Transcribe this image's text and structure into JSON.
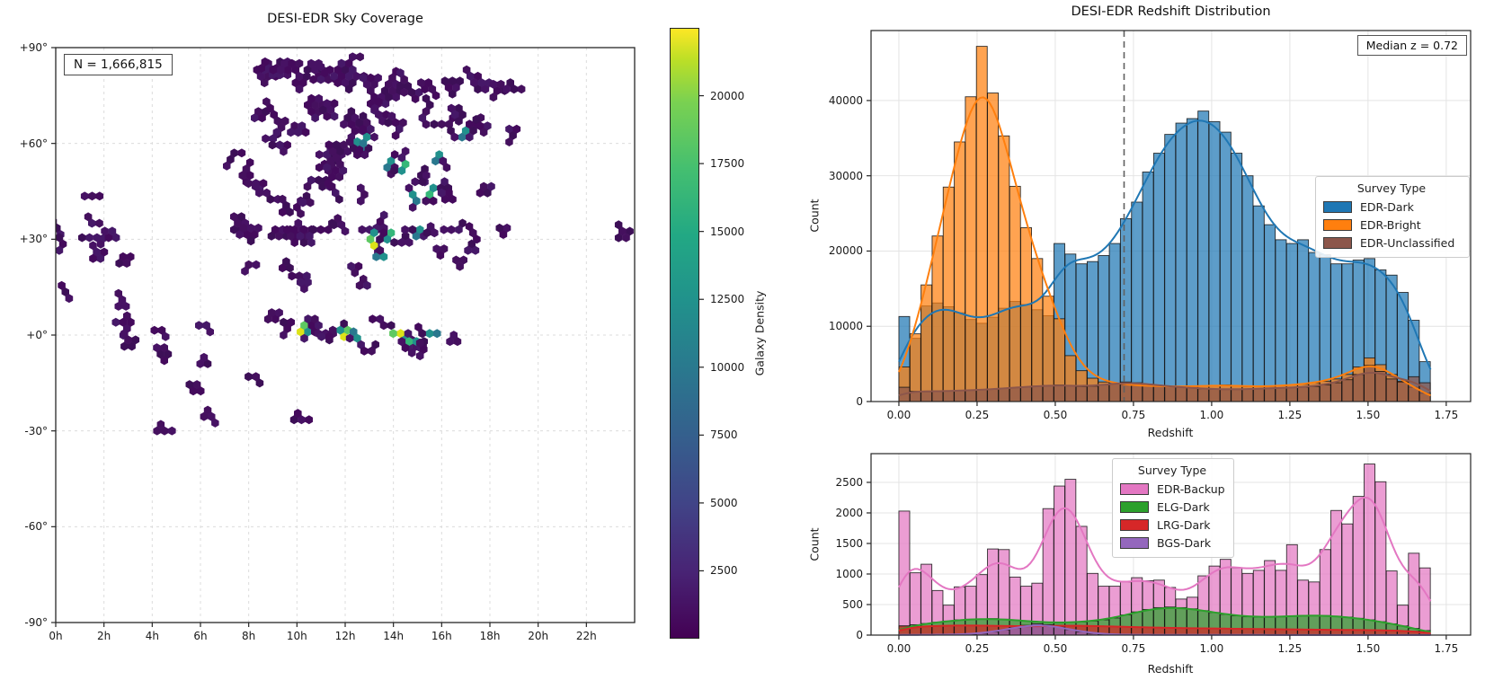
{
  "chart_data": [
    {
      "id": "sky-coverage",
      "type": "hexbin",
      "title": "DESI-EDR Sky Coverage",
      "annotation": "N = 1,666,815",
      "xlim": [
        0,
        24
      ],
      "ylim": [
        -90,
        90
      ],
      "x_tick_values": [
        0,
        2,
        4,
        6,
        8,
        10,
        12,
        14,
        16,
        18,
        20,
        22
      ],
      "x_tick_labels": [
        "0h",
        "2h",
        "4h",
        "6h",
        "8h",
        "10h",
        "12h",
        "14h",
        "16h",
        "18h",
        "20h",
        "22h"
      ],
      "y_tick_values": [
        90,
        60,
        30,
        0,
        -30,
        -60,
        -90
      ],
      "y_tick_labels": [
        "+90°",
        "+60°",
        "+30°",
        "+0°",
        "-30°",
        "-60°",
        "-90°"
      ],
      "grid": "dashed",
      "colorbar": {
        "label": "Galaxy Density",
        "tick_values": [
          2500,
          5000,
          7500,
          10000,
          12500,
          15000,
          17500,
          20000
        ],
        "tick_labels": [
          "2500",
          "5000",
          "7500",
          "10000",
          "12500",
          "15000",
          "17500",
          "20000"
        ],
        "vmin": 0,
        "vmax": 22500,
        "colormap": "viridis"
      },
      "clusters_format": [
        "ra_hours",
        "dec_deg",
        "hex_count",
        "hotspot_level"
      ],
      "clusters": [
        [
          8.5,
          81,
          8,
          0
        ],
        [
          9.3,
          81.5,
          10,
          0
        ],
        [
          10.1,
          81,
          12,
          0
        ],
        [
          10.9,
          81,
          8,
          0
        ],
        [
          11.3,
          80,
          6,
          0
        ],
        [
          12.0,
          79,
          16,
          0
        ],
        [
          12.9,
          78.5,
          12,
          0
        ],
        [
          13.8,
          78.5,
          10,
          0
        ],
        [
          14.6,
          78,
          8,
          0
        ],
        [
          15.3,
          77,
          5,
          0
        ],
        [
          16.6,
          77.5,
          6,
          0
        ],
        [
          17.5,
          77,
          8,
          0
        ],
        [
          18.3,
          76.5,
          5,
          0
        ],
        [
          19.0,
          77,
          4,
          0
        ],
        [
          8.4,
          70,
          4,
          0
        ],
        [
          9.2,
          67,
          7,
          0
        ],
        [
          9.9,
          65.5,
          5,
          0
        ],
        [
          10.6,
          70,
          9,
          0
        ],
        [
          11.4,
          70.5,
          6,
          0
        ],
        [
          12.1,
          68,
          9,
          0
        ],
        [
          12.9,
          66.5,
          6,
          0
        ],
        [
          13.7,
          69,
          5,
          0
        ],
        [
          14.4,
          66.5,
          6,
          0
        ],
        [
          15.2,
          68,
          5,
          0
        ],
        [
          16.0,
          66,
          4,
          0
        ],
        [
          16.4,
          71,
          5,
          0
        ],
        [
          17.0,
          64,
          9,
          0.35
        ],
        [
          17.9,
          65.5,
          4,
          0
        ],
        [
          18.8,
          64.5,
          4,
          0
        ],
        [
          8.7,
          61.5,
          3,
          0
        ],
        [
          9.6,
          59.5,
          4,
          0
        ],
        [
          7.4,
          57,
          4,
          0
        ],
        [
          7.9,
          52,
          5,
          0
        ],
        [
          8.3,
          47.5,
          4,
          0
        ],
        [
          8.9,
          42.5,
          5,
          0
        ],
        [
          9.4,
          38.5,
          4,
          0
        ],
        [
          10.0,
          40,
          3,
          0
        ],
        [
          10.4,
          43.5,
          3,
          0
        ],
        [
          10.9,
          48.5,
          6,
          0
        ],
        [
          11.3,
          51.5,
          8,
          0
        ],
        [
          11.7,
          54.5,
          10,
          0
        ],
        [
          12.1,
          57.5,
          8,
          0
        ],
        [
          12.5,
          60.5,
          7,
          0.4
        ],
        [
          12.9,
          62,
          4,
          0.45
        ],
        [
          13.9,
          54.5,
          5,
          0.3
        ],
        [
          14.5,
          53.5,
          5,
          0.55
        ],
        [
          15.3,
          52,
          3,
          0
        ],
        [
          15.9,
          56.5,
          4,
          0.4
        ],
        [
          14.9,
          48,
          3,
          0
        ],
        [
          12.8,
          44,
          3,
          0
        ],
        [
          11.6,
          44.5,
          3,
          0
        ],
        [
          14.8,
          44,
          4,
          0.3
        ],
        [
          15.5,
          44,
          7,
          0.6
        ],
        [
          16.3,
          44.5,
          4,
          0
        ],
        [
          17.9,
          44.5,
          4,
          0
        ],
        [
          1.2,
          43.5,
          3,
          0
        ],
        [
          7.7,
          33,
          6,
          0
        ],
        [
          8.4,
          33.5,
          7,
          0
        ],
        [
          9.1,
          33,
          8,
          0
        ],
        [
          9.9,
          33,
          7,
          0
        ],
        [
          10.6,
          33,
          6,
          0
        ],
        [
          11.3,
          33,
          5,
          0
        ],
        [
          12.0,
          32.5,
          4,
          0
        ],
        [
          12.7,
          33,
          3,
          0
        ],
        [
          13.3,
          33.5,
          4,
          0
        ],
        [
          13.9,
          32,
          5,
          0.6
        ],
        [
          14.5,
          31,
          4,
          0
        ],
        [
          15.1,
          33,
          5,
          0.35
        ],
        [
          15.7,
          32,
          3,
          0
        ],
        [
          16.4,
          33,
          4,
          0
        ],
        [
          17.3,
          32,
          3,
          0
        ],
        [
          18.4,
          33.5,
          3,
          0
        ],
        [
          23.8,
          32.5,
          5,
          0
        ],
        [
          0.2,
          31.5,
          3,
          0
        ],
        [
          0.3,
          28.5,
          4,
          0
        ],
        [
          1.4,
          30.5,
          5,
          0
        ],
        [
          1.7,
          26,
          5,
          0
        ],
        [
          2.5,
          30.5,
          4,
          0
        ],
        [
          1.5,
          35,
          3,
          0
        ],
        [
          3.1,
          24.5,
          4,
          0
        ],
        [
          13.2,
          28,
          4,
          0.75
        ],
        [
          13.6,
          24.5,
          3,
          0.3
        ],
        [
          16.1,
          27,
          3,
          0
        ],
        [
          16.6,
          23.5,
          3,
          0
        ],
        [
          17.4,
          26.5,
          3,
          0
        ],
        [
          9.4,
          21,
          3,
          0
        ],
        [
          10.1,
          18.5,
          4,
          0
        ],
        [
          10.3,
          14.5,
          3,
          0
        ],
        [
          12.4,
          19.5,
          3,
          0
        ],
        [
          12.6,
          15.5,
          3,
          0
        ],
        [
          0.4,
          13.5,
          3,
          0
        ],
        [
          8.0,
          22,
          3,
          0
        ],
        [
          2.6,
          9,
          4,
          0
        ],
        [
          2.8,
          4,
          6,
          0
        ],
        [
          3.0,
          -1.5,
          5,
          0
        ],
        [
          4.4,
          1.5,
          3,
          0
        ],
        [
          6.4,
          1,
          3,
          0
        ],
        [
          8.8,
          5,
          4,
          0
        ],
        [
          9.6,
          2,
          4,
          0
        ],
        [
          10.15,
          1,
          6,
          0.85
        ],
        [
          10.9,
          3,
          3,
          0
        ],
        [
          11.5,
          0.5,
          4,
          0
        ],
        [
          11.95,
          -0.5,
          7,
          0.85
        ],
        [
          12.5,
          -1,
          4,
          0.35
        ],
        [
          13.6,
          3,
          4,
          0
        ],
        [
          14.3,
          0.5,
          9,
          0.85
        ],
        [
          14.65,
          -2,
          6,
          0.6
        ],
        [
          15.5,
          0.5,
          4,
          0.3
        ],
        [
          13.1,
          -5,
          3,
          0
        ],
        [
          15.1,
          -6.5,
          3,
          0
        ],
        [
          16.5,
          0,
          3,
          0
        ],
        [
          4.5,
          -8,
          5,
          0
        ],
        [
          6.3,
          -9,
          3,
          0
        ],
        [
          5.7,
          -17.5,
          4,
          0
        ],
        [
          6.3,
          -23.5,
          4,
          0
        ],
        [
          4.2,
          -30,
          4,
          0
        ],
        [
          10.5,
          -26.5,
          4,
          0
        ],
        [
          8.3,
          -13,
          3,
          0
        ]
      ]
    },
    {
      "id": "redshift-distribution-main",
      "type": "histogram+kde",
      "title": "DESI-EDR Redshift Distribution",
      "xlabel": "Redshift",
      "ylabel": "Count",
      "annotation": "Median z = 0.72",
      "median_z": 0.72,
      "xlim": [
        -0.089,
        1.828
      ],
      "ylim": [
        0,
        49300
      ],
      "x_tick_values": [
        0,
        0.25,
        0.5,
        0.75,
        1.0,
        1.25,
        1.5,
        1.75
      ],
      "x_tick_labels": [
        "0.00",
        "0.25",
        "0.50",
        "0.75",
        "1.00",
        "1.25",
        "1.50",
        "1.75"
      ],
      "y_tick_values": [
        0,
        10000,
        20000,
        30000,
        40000
      ],
      "y_tick_labels": [
        "0",
        "10000",
        "20000",
        "30000",
        "40000"
      ],
      "bin_start": 0,
      "bin_width": 0.0354167,
      "kde_sigma": 0.05,
      "legend": {
        "title": "Survey Type"
      },
      "series": [
        {
          "name": "EDR-Dark",
          "color": "#1f77b4",
          "values": [
            11300,
            8400,
            12700,
            13100,
            12600,
            11800,
            10900,
            10400,
            11200,
            12400,
            13300,
            12900,
            12200,
            11400,
            21000,
            19600,
            18300,
            18600,
            19400,
            21000,
            24300,
            26500,
            30500,
            33000,
            35500,
            37000,
            37600,
            38600,
            37200,
            35800,
            33000,
            30000,
            26000,
            23500,
            21500,
            21000,
            21500,
            19800,
            19500,
            18300,
            18300,
            18800,
            19000,
            17500,
            16800,
            14500,
            10800,
            5300
          ]
        },
        {
          "name": "EDR-Bright",
          "color": "#ff7f0e",
          "values": [
            4600,
            9000,
            15500,
            22000,
            28500,
            34500,
            40500,
            47200,
            41000,
            35300,
            28600,
            23100,
            19000,
            14000,
            11000,
            6100,
            4100,
            3100,
            2600,
            2400,
            2200,
            2100,
            2100,
            2000,
            2000,
            2000,
            2000,
            2100,
            2100,
            2200,
            2100,
            2000,
            2000,
            2000,
            2100,
            2200,
            2300,
            2500,
            2700,
            3000,
            3600,
            4600,
            5800,
            4900,
            3600,
            2700,
            1900,
            1100
          ]
        },
        {
          "name": "EDR-Unclassified",
          "color": "#8c564b",
          "values": [
            1900,
            1350,
            1300,
            1350,
            1400,
            1450,
            1500,
            1550,
            1650,
            1750,
            1850,
            1950,
            2050,
            2150,
            2200,
            2100,
            2000,
            2050,
            2200,
            2400,
            2600,
            2500,
            2300,
            2150,
            2000,
            1900,
            1800,
            1700,
            1650,
            1600,
            1600,
            1650,
            1700,
            1750,
            1800,
            1850,
            1900,
            2000,
            2200,
            2500,
            2900,
            3600,
            4800,
            4000,
            3000,
            2600,
            3300,
            2500
          ]
        }
      ]
    },
    {
      "id": "redshift-distribution-sub",
      "type": "histogram+kde",
      "xlabel": "Redshift",
      "ylabel": "Count",
      "xlim": [
        -0.089,
        1.828
      ],
      "ylim": [
        0,
        2970
      ],
      "x_tick_values": [
        0,
        0.25,
        0.5,
        0.75,
        1.0,
        1.25,
        1.5,
        1.75
      ],
      "x_tick_labels": [
        "0.00",
        "0.25",
        "0.50",
        "0.75",
        "1.00",
        "1.25",
        "1.50",
        "1.75"
      ],
      "y_tick_values": [
        0,
        500,
        1000,
        1500,
        2000,
        2500
      ],
      "y_tick_labels": [
        "0",
        "500",
        "1000",
        "1500",
        "2000",
        "2500"
      ],
      "bin_start": 0,
      "bin_width": 0.0354167,
      "kde_sigma": 0.05,
      "legend": {
        "title": "Survey Type"
      },
      "series": [
        {
          "name": "EDR-Backup",
          "color": "#e377c2",
          "values": [
            2030,
            1020,
            1160,
            730,
            490,
            790,
            800,
            990,
            1410,
            1400,
            950,
            800,
            850,
            2070,
            2440,
            2550,
            1780,
            1010,
            800,
            800,
            870,
            940,
            890,
            900,
            780,
            590,
            620,
            970,
            1130,
            1240,
            1100,
            1010,
            1060,
            1220,
            1060,
            1480,
            900,
            870,
            1400,
            2040,
            1820,
            2270,
            2800,
            2510,
            1050,
            490,
            1340,
            1100
          ]
        },
        {
          "name": "ELG-Dark",
          "color": "#2ca02c",
          "values": [
            150,
            170,
            190,
            210,
            230,
            250,
            260,
            265,
            270,
            260,
            245,
            230,
            215,
            205,
            200,
            205,
            215,
            230,
            250,
            280,
            330,
            380,
            420,
            450,
            460,
            450,
            430,
            400,
            370,
            340,
            315,
            300,
            295,
            295,
            300,
            310,
            320,
            325,
            320,
            310,
            295,
            275,
            250,
            220,
            185,
            150,
            110,
            75
          ]
        },
        {
          "name": "LRG-Dark",
          "color": "#d62728",
          "values": [
            150,
            140,
            145,
            150,
            155,
            160,
            160,
            155,
            150,
            150,
            148,
            145,
            142,
            140,
            160,
            158,
            152,
            148,
            144,
            140,
            135,
            130,
            126,
            122,
            118,
            114,
            112,
            110,
            108,
            105,
            103,
            101,
            99,
            97,
            95,
            93,
            91,
            89,
            87,
            86,
            84,
            83,
            82,
            80,
            76,
            70,
            62,
            55
          ]
        },
        {
          "name": "BGS-Dark",
          "color": "#9467bd",
          "values": [
            5,
            5,
            5,
            5,
            8,
            10,
            15,
            30,
            55,
            85,
            120,
            160,
            185,
            170,
            130,
            90,
            55,
            28,
            14,
            8,
            5,
            5,
            5,
            4,
            4,
            4,
            4,
            3,
            3,
            3,
            3,
            3,
            3,
            3,
            2,
            2,
            2,
            2,
            2,
            2,
            2,
            2,
            2,
            2,
            2,
            2,
            2,
            2
          ]
        }
      ]
    }
  ]
}
